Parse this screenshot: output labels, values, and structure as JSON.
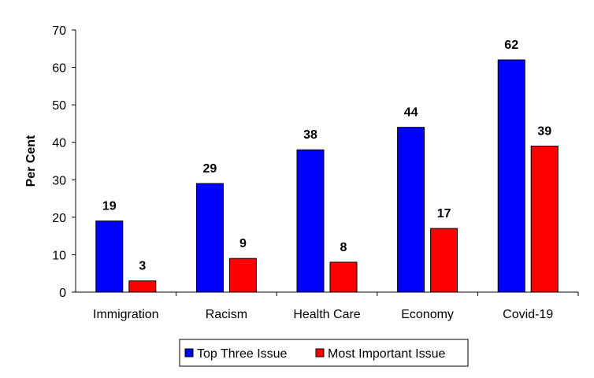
{
  "chart_data": {
    "type": "bar",
    "title": "",
    "xlabel": "",
    "ylabel": "Per Cent",
    "ylim": [
      0,
      70
    ],
    "yticks": [
      0,
      10,
      20,
      30,
      40,
      50,
      60,
      70
    ],
    "grid": false,
    "legend_position": "bottom",
    "categories": [
      "Immigration",
      "Racism",
      "Health Care",
      "Economy",
      "Covid-19"
    ],
    "series": [
      {
        "name": "Top Three Issue",
        "color": "#0000ff",
        "values": [
          19,
          29,
          38,
          44,
          62
        ]
      },
      {
        "name": "Most Important Issue",
        "color": "#ff0000",
        "values": [
          3,
          9,
          8,
          17,
          39
        ]
      }
    ]
  }
}
